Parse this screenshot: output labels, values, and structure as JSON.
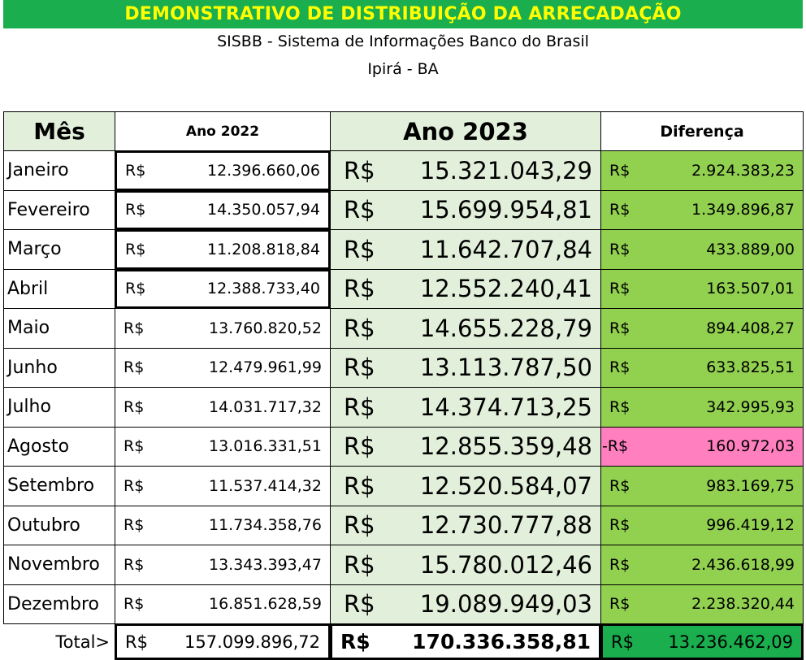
{
  "header": {
    "title": "DEMONSTRATIVO DE DISTRIBUIÇÃO DA ARRECADAÇÃO",
    "subtitle": "SISBB - Sistema de Informações Banco do Brasil",
    "location": "Ipirá - BA"
  },
  "table": {
    "columns": [
      "Mês",
      "Ano 2022",
      "Ano 2023",
      "Diferença"
    ],
    "currency": "R$",
    "negative_currency": "-R$",
    "rows": [
      {
        "month": "Janeiro",
        "y2022": "12.396.660,06",
        "y2023": "15.321.043,29",
        "diff": "2.924.383,23",
        "negative": false
      },
      {
        "month": "Fevereiro",
        "y2022": "14.350.057,94",
        "y2023": "15.699.954,81",
        "diff": "1.349.896,87",
        "negative": false
      },
      {
        "month": "Março",
        "y2022": "11.208.818,84",
        "y2023": "11.642.707,84",
        "diff": "433.889,00",
        "negative": false
      },
      {
        "month": "Abril",
        "y2022": "12.388.733,40",
        "y2023": "12.552.240,41",
        "diff": "163.507,01",
        "negative": false
      },
      {
        "month": "Maio",
        "y2022": "13.760.820,52",
        "y2023": "14.655.228,79",
        "diff": "894.408,27",
        "negative": false
      },
      {
        "month": "Junho",
        "y2022": "12.479.961,99",
        "y2023": "13.113.787,50",
        "diff": "633.825,51",
        "negative": false
      },
      {
        "month": "Julho",
        "y2022": "14.031.717,32",
        "y2023": "14.374.713,25",
        "diff": "342.995,93",
        "negative": false
      },
      {
        "month": "Agosto",
        "y2022": "13.016.331,51",
        "y2023": "12.855.359,48",
        "diff": "160.972,03",
        "negative": true
      },
      {
        "month": "Setembro",
        "y2022": "11.537.414,32",
        "y2023": "12.520.584,07",
        "diff": "983.169,75",
        "negative": false
      },
      {
        "month": "Outubro",
        "y2022": "11.734.358,76",
        "y2023": "12.730.777,88",
        "diff": "996.419,12",
        "negative": false
      },
      {
        "month": "Novembro",
        "y2022": "13.343.393,47",
        "y2023": "15.780.012,46",
        "diff": "2.436.618,99",
        "negative": false
      },
      {
        "month": "Dezembro",
        "y2022": "16.851.628,59",
        "y2023": "19.089.949,03",
        "diff": "2.238.320,44",
        "negative": false
      }
    ],
    "total": {
      "label": "Total>",
      "y2022": "157.099.896,72",
      "y2023": "170.336.358,81",
      "diff": "13.236.462,09"
    }
  },
  "colors": {
    "banner": "#1aae4e",
    "banner_text": "#ffff00",
    "light_green": "#e2efda",
    "green": "#92d050",
    "pink": "#ff7fbf",
    "total_diff": "#1aae4e"
  }
}
